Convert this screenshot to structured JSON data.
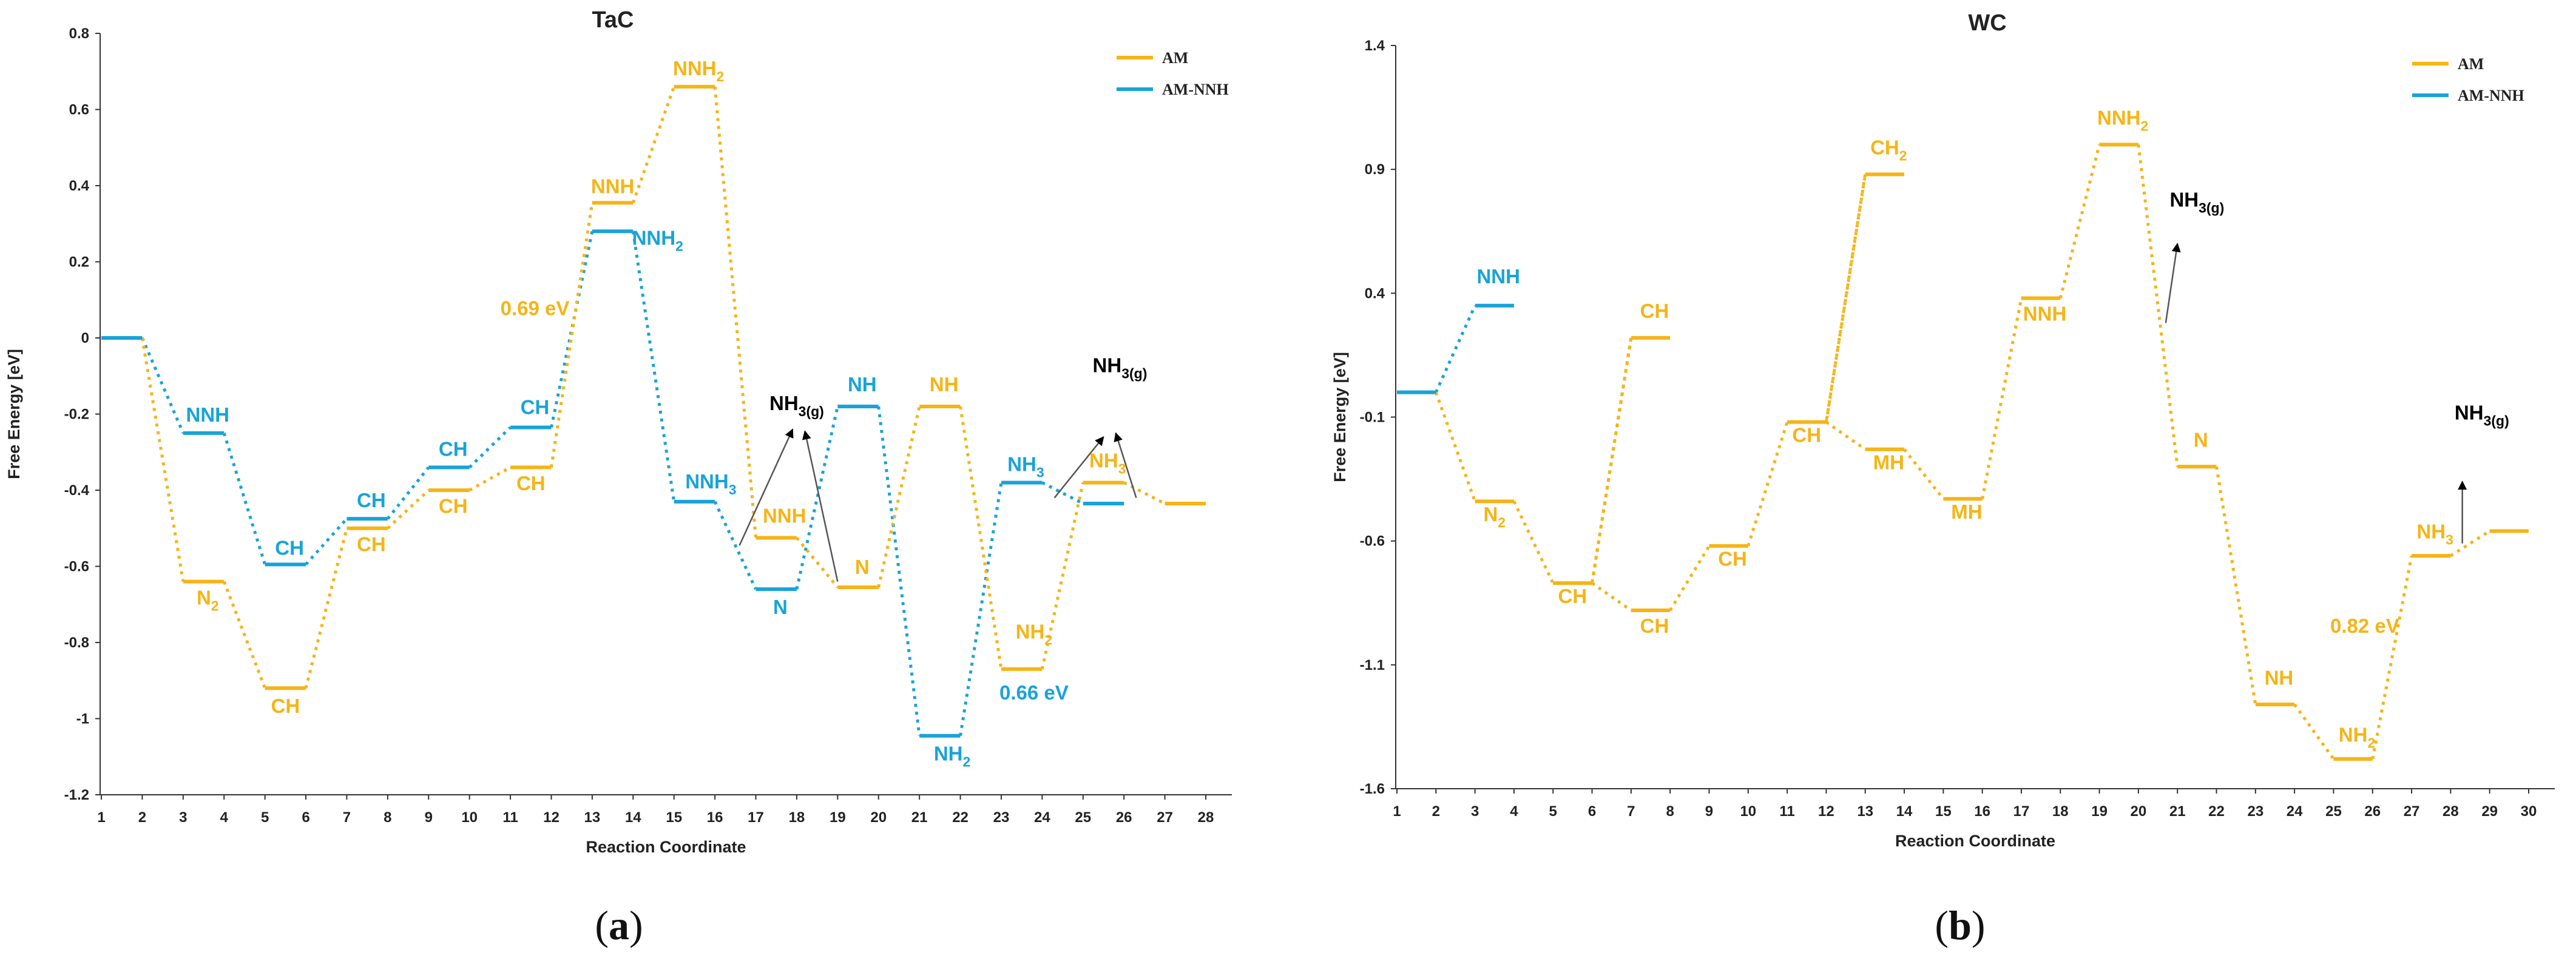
{
  "colors": {
    "AM": "#f6b416",
    "AM-NNH": "#18a3d9",
    "text": "#222222",
    "arrow": "#000000"
  },
  "chart_data": [
    {
      "type": "line",
      "panel": "(a)",
      "sublabel": {
        "open": "(",
        "letter": "a",
        "close": ")"
      },
      "title": "TaC",
      "xlabel": "Reaction Coordinate",
      "ylabel": "Free Energy [eV]",
      "ylim": [
        -1.2,
        0.8
      ],
      "yticks": [
        0.8,
        0.6,
        0.4,
        0.2,
        0,
        -0.2,
        -0.4,
        -0.6,
        -0.8,
        -1,
        -1.2
      ],
      "ytick_labels": [
        "0.8",
        "0.6",
        "0.4",
        "0.2",
        "0",
        "-0.2",
        "-0.4",
        "-0.6",
        "-0.8",
        "-1",
        "-1.2"
      ],
      "xmax": 28,
      "categories": [
        "1",
        "2",
        "3",
        "4",
        "5",
        "6",
        "7",
        "8",
        "9",
        "10",
        "11",
        "12",
        "13",
        "14",
        "15",
        "16",
        "17",
        "18",
        "19",
        "20",
        "21",
        "22",
        "23",
        "24",
        "25",
        "26",
        "27",
        "28"
      ],
      "grid": false,
      "legend": {
        "placement": "top-right",
        "entries": [
          "AM",
          "AM-NNH"
        ]
      },
      "series": [
        {
          "name": "AM",
          "color": "#f6b416",
          "levels": [
            {
              "x": [
                1,
                2
              ],
              "y": 0,
              "color": "#18a3d9"
            },
            {
              "x": [
                3,
                4
              ],
              "y": -0.64
            },
            {
              "x": [
                5,
                6
              ],
              "y": -0.92
            },
            {
              "x": [
                7,
                8
              ],
              "y": -0.5
            },
            {
              "x": [
                9,
                10
              ],
              "y": -0.4
            },
            {
              "x": [
                11,
                12
              ],
              "y": -0.34
            },
            {
              "x": [
                13,
                14
              ],
              "y": 0.355
            },
            {
              "x": [
                15,
                16
              ],
              "y": 0.66
            },
            {
              "x": [
                17,
                18
              ],
              "y": -0.525
            },
            {
              "x": [
                19,
                20
              ],
              "y": -0.655
            },
            {
              "x": [
                21,
                22
              ],
              "y": -0.18
            },
            {
              "x": [
                23,
                24
              ],
              "y": -0.87
            },
            {
              "x": [
                25,
                26
              ],
              "y": -0.38
            },
            {
              "x": [
                27,
                28
              ],
              "y": -0.435
            }
          ]
        },
        {
          "name": "AM-NNH",
          "color": "#18a3d9",
          "levels": [
            {
              "x": [
                1,
                2
              ],
              "y": 0
            },
            {
              "x": [
                3,
                4
              ],
              "y": -0.25
            },
            {
              "x": [
                5,
                6
              ],
              "y": -0.595
            },
            {
              "x": [
                7,
                8
              ],
              "y": -0.475
            },
            {
              "x": [
                9,
                10
              ],
              "y": -0.34
            },
            {
              "x": [
                11,
                12
              ],
              "y": -0.235
            },
            {
              "x": [
                13,
                14
              ],
              "y": 0.28
            },
            {
              "x": [
                15,
                16
              ],
              "y": -0.43
            },
            {
              "x": [
                17,
                18
              ],
              "y": -0.66
            },
            {
              "x": [
                19,
                20
              ],
              "y": -0.18
            },
            {
              "x": [
                21,
                22
              ],
              "y": -1.045
            },
            {
              "x": [
                23,
                24
              ],
              "y": -0.38
            },
            {
              "x": [
                25,
                26
              ],
              "y": -0.435
            }
          ]
        }
      ],
      "annotations": [
        {
          "main": "NNH",
          "sub": "",
          "sub2": "",
          "x": 3.6,
          "y": -0.22,
          "series": "AM-NNH"
        },
        {
          "main": "N",
          "sub": "2",
          "sub2": "",
          "x": 3.6,
          "y": -0.7,
          "series": "AM"
        },
        {
          "main": "CH",
          "sub": "",
          "sub2": "",
          "x": 5.6,
          "y": -0.57,
          "series": "AM-NNH"
        },
        {
          "main": "CH",
          "sub": "",
          "sub2": "",
          "x": 5.5,
          "y": -0.985,
          "series": "AM"
        },
        {
          "main": "CH",
          "sub": "",
          "sub2": "",
          "x": 7.6,
          "y": -0.445,
          "series": "AM-NNH"
        },
        {
          "main": "CH",
          "sub": "",
          "sub2": "",
          "x": 7.6,
          "y": -0.56,
          "series": "AM"
        },
        {
          "main": "CH",
          "sub": "",
          "sub2": "",
          "x": 9.6,
          "y": -0.31,
          "series": "AM-NNH"
        },
        {
          "main": "CH",
          "sub": "",
          "sub2": "",
          "x": 9.6,
          "y": -0.46,
          "series": "AM"
        },
        {
          "main": "CH",
          "sub": "",
          "sub2": "",
          "x": 11.6,
          "y": -0.2,
          "series": "AM-NNH"
        },
        {
          "main": "CH",
          "sub": "",
          "sub2": "",
          "x": 11.5,
          "y": -0.4,
          "series": "AM"
        },
        {
          "main": "0.69 eV",
          "sub": "",
          "sub2": "",
          "x": 11.6,
          "y": 0.06,
          "series": "AM"
        },
        {
          "main": "NNH",
          "sub": "",
          "sub2": "",
          "x": 13.5,
          "y": 0.38,
          "series": "AM"
        },
        {
          "main": "NNH",
          "sub": "2",
          "sub2": "",
          "x": 14.6,
          "y": 0.245,
          "series": "AM-NNH"
        },
        {
          "main": "NNH",
          "sub": "2",
          "sub2": "",
          "x": 15.6,
          "y": 0.69,
          "series": "AM"
        },
        {
          "main": "NNH",
          "sub": "3",
          "sub2": "",
          "x": 15.9,
          "y": -0.395,
          "series": "AM-NNH"
        },
        {
          "main": "NNH",
          "sub": "",
          "sub2": "",
          "x": 17.7,
          "y": -0.485,
          "series": "AM"
        },
        {
          "main": "N",
          "sub": "",
          "sub2": "",
          "x": 17.6,
          "y": -0.725,
          "series": "AM-NNH"
        },
        {
          "main": "N",
          "sub": "",
          "sub2": "",
          "x": 19.6,
          "y": -0.62,
          "series": "AM"
        },
        {
          "main": "NH",
          "sub": "",
          "sub2": "",
          "x": 19.6,
          "y": -0.14,
          "series": "AM-NNH"
        },
        {
          "main": "NH",
          "sub": "",
          "sub2": "",
          "x": 21.6,
          "y": -0.14,
          "series": "AM"
        },
        {
          "main": "NH",
          "sub": "2",
          "sub2": "",
          "x": 21.8,
          "y": -1.11,
          "series": "AM-NNH"
        },
        {
          "main": "0.66 eV",
          "sub": "",
          "sub2": "",
          "x": 23.8,
          "y": -0.95,
          "series": "AM-NNH"
        },
        {
          "main": "NH",
          "sub": "2",
          "sub2": "",
          "x": 23.8,
          "y": -0.79,
          "series": "AM"
        },
        {
          "main": "NH",
          "sub": "3",
          "sub2": "",
          "x": 23.6,
          "y": -0.35,
          "series": "AM-NNH"
        },
        {
          "main": "NH",
          "sub": "3",
          "sub2": "",
          "x": 25.6,
          "y": -0.34,
          "series": "AM"
        },
        {
          "main": "NH",
          "sub": "3(g)",
          "sub2": "",
          "x": 18.0,
          "y": -0.19,
          "series": "black"
        },
        {
          "main": "NH",
          "sub": "3(g)",
          "sub2": "",
          "x": 25.9,
          "y": -0.09,
          "series": "black"
        }
      ],
      "arrows": [
        {
          "from": [
            16.6,
            -0.545
          ],
          "to": [
            17.9,
            -0.24
          ]
        },
        {
          "from": [
            19.0,
            -0.64
          ],
          "to": [
            18.2,
            -0.245
          ]
        },
        {
          "from": [
            24.3,
            -0.42
          ],
          "to": [
            25.5,
            -0.26
          ]
        },
        {
          "from": [
            26.3,
            -0.42
          ],
          "to": [
            25.8,
            -0.25
          ]
        }
      ]
    },
    {
      "type": "line",
      "panel": "(b)",
      "sublabel": {
        "open": "(",
        "letter": "b",
        "close": ")"
      },
      "title": "WC",
      "xlabel": "Reaction Coordinate",
      "ylabel": "Free Energy [eV]",
      "ylim": [
        -1.6,
        1.4
      ],
      "yticks": [
        1.4,
        0.9,
        0.4,
        -0.1,
        -0.6,
        -1.1,
        -1.6
      ],
      "ytick_labels": [
        "1.4",
        "0.9",
        "0.4",
        "-0.1",
        "-0.6",
        "-1.1",
        "-1.6"
      ],
      "xmax": 30,
      "categories": [
        "1",
        "2",
        "3",
        "4",
        "5",
        "6",
        "7",
        "8",
        "9",
        "10",
        "11",
        "12",
        "13",
        "14",
        "15",
        "16",
        "17",
        "18",
        "19",
        "20",
        "21",
        "22",
        "23",
        "24",
        "25",
        "26",
        "27",
        "28",
        "29",
        "30"
      ],
      "grid": false,
      "legend": {
        "placement": "top-right",
        "entries": [
          "AM",
          "AM-NNH"
        ]
      },
      "series": [
        {
          "name": "AM",
          "color": "#f6b416",
          "levels": [
            {
              "x": [
                1,
                2
              ],
              "y": 0,
              "color": "#18a3d9"
            },
            {
              "x": [
                3,
                4
              ],
              "y": -0.44
            },
            {
              "x": [
                5,
                6
              ],
              "y": -0.77
            },
            {
              "x": [
                7,
                8
              ],
              "y": 0.22
            },
            {
              "x": [
                7,
                8
              ],
              "y": -0.88
            },
            {
              "x": [
                9,
                10
              ],
              "y": -0.62
            },
            {
              "x": [
                11,
                12
              ],
              "y": -0.12
            },
            {
              "x": [
                13,
                14
              ],
              "y": 0.88
            },
            {
              "x": [
                13,
                14
              ],
              "y": -0.23
            },
            {
              "x": [
                15,
                16
              ],
              "y": -0.43
            },
            {
              "x": [
                17,
                18
              ],
              "y": 0.38
            },
            {
              "x": [
                19,
                20
              ],
              "y": 1.0
            },
            {
              "x": [
                21,
                22
              ],
              "y": -0.3
            },
            {
              "x": [
                23,
                24
              ],
              "y": -1.26
            },
            {
              "x": [
                25,
                26
              ],
              "y": -1.48
            },
            {
              "x": [
                27,
                28
              ],
              "y": -0.66
            },
            {
              "x": [
                29,
                30
              ],
              "y": -0.56
            }
          ],
          "path": [
            [
              2,
              0
            ],
            [
              3,
              -0.44
            ],
            [
              4,
              -0.44
            ],
            [
              5,
              -0.77
            ],
            [
              6,
              -0.77
            ],
            [
              7,
              0.22
            ],
            [
              6,
              -0.77
            ],
            [
              7,
              -0.88
            ],
            [
              8,
              -0.88
            ],
            [
              9,
              -0.62
            ],
            [
              10,
              -0.62
            ],
            [
              11,
              -0.12
            ],
            [
              12,
              -0.12
            ],
            [
              13,
              0.88
            ],
            [
              12,
              -0.12
            ],
            [
              13,
              -0.23
            ],
            [
              14,
              -0.23
            ],
            [
              15,
              -0.43
            ],
            [
              16,
              -0.43
            ],
            [
              17,
              0.38
            ],
            [
              18,
              0.38
            ],
            [
              19,
              1.0
            ],
            [
              20,
              1.0
            ],
            [
              21,
              -0.3
            ],
            [
              22,
              -0.3
            ],
            [
              23,
              -1.26
            ],
            [
              24,
              -1.26
            ],
            [
              25,
              -1.48
            ],
            [
              26,
              -1.48
            ],
            [
              27,
              -0.66
            ],
            [
              28,
              -0.66
            ],
            [
              29,
              -0.56
            ]
          ]
        },
        {
          "name": "AM-NNH",
          "color": "#18a3d9",
          "levels": [
            {
              "x": [
                1,
                2
              ],
              "y": 0
            },
            {
              "x": [
                3,
                4
              ],
              "y": 0.35
            }
          ],
          "path": [
            [
              2,
              0
            ],
            [
              3,
              0.35
            ]
          ]
        }
      ],
      "annotations": [
        {
          "main": "NNH",
          "sub": "",
          "sub2": "",
          "x": 3.6,
          "y": 0.44,
          "series": "AM-NNH"
        },
        {
          "main": "N",
          "sub": "2",
          "sub2": "",
          "x": 3.5,
          "y": -0.52,
          "series": "AM"
        },
        {
          "main": "CH",
          "sub": "",
          "sub2": "",
          "x": 5.5,
          "y": -0.85,
          "series": "AM"
        },
        {
          "main": "CH",
          "sub": "",
          "sub2": "",
          "x": 7.6,
          "y": 0.3,
          "series": "AM"
        },
        {
          "main": "CH",
          "sub": "",
          "sub2": "",
          "x": 7.6,
          "y": -0.97,
          "series": "AM"
        },
        {
          "main": "CH",
          "sub": "",
          "sub2": "",
          "x": 9.6,
          "y": -0.7,
          "series": "AM"
        },
        {
          "main": "CH",
          "sub": "",
          "sub2": "",
          "x": 11.5,
          "y": -0.2,
          "series": "AM"
        },
        {
          "main": "CH",
          "sub": "2",
          "sub2": "",
          "x": 13.6,
          "y": 0.96,
          "series": "AM"
        },
        {
          "main": "MH",
          "sub": "",
          "sub2": "",
          "x": 13.6,
          "y": -0.31,
          "series": "AM"
        },
        {
          "main": "MH",
          "sub": "",
          "sub2": "",
          "x": 15.6,
          "y": -0.51,
          "series": "AM"
        },
        {
          "main": "NNH",
          "sub": "",
          "sub2": "",
          "x": 17.6,
          "y": 0.29,
          "series": "AM"
        },
        {
          "main": "NNH",
          "sub": "2",
          "sub2": "",
          "x": 19.6,
          "y": 1.08,
          "series": "AM"
        },
        {
          "main": "N",
          "sub": "",
          "sub2": "",
          "x": 21.6,
          "y": -0.22,
          "series": "AM"
        },
        {
          "main": "NH",
          "sub": "",
          "sub2": "",
          "x": 23.6,
          "y": -1.18,
          "series": "AM"
        },
        {
          "main": "NH",
          "sub": "2",
          "sub2": "",
          "x": 25.6,
          "y": -1.41,
          "series": "AM"
        },
        {
          "main": "0.82 eV",
          "sub": "",
          "sub2": "",
          "x": 25.8,
          "y": -0.97,
          "series": "AM"
        },
        {
          "main": "NH",
          "sub": "3",
          "sub2": "",
          "x": 27.6,
          "y": -0.59,
          "series": "AM"
        },
        {
          "main": "NH",
          "sub": "3(g)",
          "sub2": "",
          "x": 21.5,
          "y": 0.75,
          "series": "black"
        },
        {
          "main": "NH",
          "sub": "3(g)",
          "sub2": "",
          "x": 28.8,
          "y": -0.11,
          "series": "black"
        }
      ],
      "arrows": [
        {
          "from": [
            20.7,
            0.28
          ],
          "to": [
            21.0,
            0.6
          ]
        },
        {
          "from": [
            28.3,
            -0.61
          ],
          "to": [
            28.3,
            -0.36
          ]
        }
      ]
    }
  ]
}
